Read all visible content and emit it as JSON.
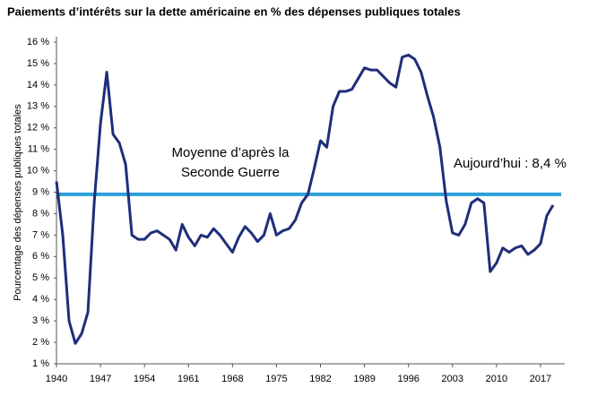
{
  "chart_data": {
    "type": "line",
    "title": "Paiements d’intérêts sur la dette américaine en % des dépenses publiques totales",
    "y_label": "Pourcentage des dépenses publiques totales",
    "x": [
      1940,
      1941,
      1942,
      1943,
      1944,
      1945,
      1946,
      1947,
      1948,
      1949,
      1950,
      1951,
      1952,
      1953,
      1954,
      1955,
      1956,
      1957,
      1958,
      1959,
      1960,
      1961,
      1962,
      1963,
      1964,
      1965,
      1966,
      1967,
      1968,
      1969,
      1970,
      1971,
      1972,
      1973,
      1974,
      1975,
      1976,
      1977,
      1978,
      1979,
      1980,
      1981,
      1982,
      1983,
      1984,
      1985,
      1986,
      1987,
      1988,
      1989,
      1990,
      1991,
      1992,
      1993,
      1994,
      1995,
      1996,
      1997,
      1998,
      1999,
      2000,
      2001,
      2002,
      2003,
      2004,
      2005,
      2006,
      2007,
      2008,
      2009,
      2010,
      2011,
      2012,
      2013,
      2014,
      2015,
      2016,
      2017,
      2018,
      2019
    ],
    "series": [
      {
        "name": "Paiements d’intérêts",
        "color": "#1f2d7a",
        "values": [
          9.5,
          7.0,
          3.0,
          1.95,
          2.4,
          3.4,
          8.5,
          12.2,
          14.6,
          11.7,
          11.3,
          10.3,
          7.0,
          6.8,
          6.8,
          7.1,
          7.2,
          7.0,
          6.8,
          6.3,
          7.5,
          6.9,
          6.5,
          7.0,
          6.9,
          7.3,
          7.0,
          6.6,
          6.2,
          6.9,
          7.4,
          7.1,
          6.7,
          7.0,
          8.0,
          7.0,
          7.2,
          7.3,
          7.7,
          8.5,
          8.9,
          10.1,
          11.4,
          11.1,
          13.0,
          13.7,
          13.7,
          13.8,
          14.3,
          14.8,
          14.7,
          14.7,
          14.4,
          14.1,
          13.9,
          15.3,
          15.4,
          15.2,
          14.6,
          13.5,
          12.5,
          11.1,
          8.6,
          7.1,
          7.0,
          7.5,
          8.5,
          8.7,
          8.5,
          5.3,
          5.7,
          6.4,
          6.2,
          6.4,
          6.5,
          6.1,
          6.3,
          6.6,
          7.9,
          8.4
        ]
      }
    ],
    "reference_line": {
      "value": 8.9,
      "color": "#2aa0d8",
      "label": [
        "Moyenne d’après la",
        "Seconde Guerre"
      ]
    },
    "annotation": "Aujourd’hui : 8,4 %",
    "xlim": [
      1940,
      2020
    ],
    "xticks": [
      1940,
      1947,
      1954,
      1961,
      1968,
      1975,
      1982,
      1989,
      1996,
      2003,
      2010,
      2017
    ],
    "ylim": [
      1,
      16
    ],
    "yticks": [
      {
        "value": 1,
        "label": "1 %"
      },
      {
        "value": 2,
        "label": "2 %"
      },
      {
        "value": 3,
        "label": "3 %"
      },
      {
        "value": 4,
        "label": "4 %"
      },
      {
        "value": 5,
        "label": "5 %"
      },
      {
        "value": 6,
        "label": "6 %"
      },
      {
        "value": 7,
        "label": "7 %"
      },
      {
        "value": 8,
        "label": "8 %"
      },
      {
        "value": 9,
        "label": "9 %"
      },
      {
        "value": 10,
        "label": "10 %"
      },
      {
        "value": 11,
        "label": "11 %"
      },
      {
        "value": 12,
        "label": "12 %"
      },
      {
        "value": 13,
        "label": "13 %"
      },
      {
        "value": 14,
        "label": "14 %"
      },
      {
        "value": 15,
        "label": "15 %"
      },
      {
        "value": 16,
        "label": "16 %"
      }
    ],
    "grid": false
  }
}
